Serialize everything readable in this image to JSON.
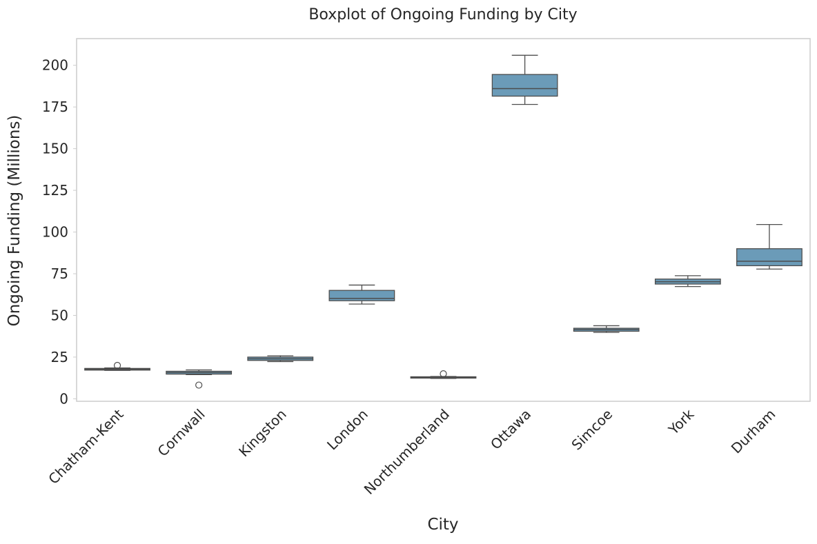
{
  "chart_data": {
    "type": "boxplot",
    "title": "Boxplot of Ongoing Funding by City",
    "xlabel": "City",
    "ylabel": "Ongoing Funding (Millions)",
    "ylim": [
      -1.5,
      216
    ],
    "yticks": [
      0,
      25,
      50,
      75,
      100,
      125,
      150,
      175,
      200
    ],
    "grid": false,
    "box_color": "#6b9bb8",
    "line_color": "#4d4d4d",
    "categories": [
      "Chatham-Kent",
      "Cornwall",
      "Kingston",
      "London",
      "Northumberland",
      "Ottawa",
      "Simcoe",
      "York",
      "Durham"
    ],
    "boxes": [
      {
        "city": "Chatham-Kent",
        "whisker_low": 17,
        "q1": 17.2,
        "median": 17.7,
        "q3": 18.2,
        "whisker_high": 18.5,
        "fliers": [
          20
        ]
      },
      {
        "city": "Cornwall",
        "whisker_low": 14.5,
        "q1": 14.8,
        "median": 15.7,
        "q3": 16.5,
        "whisker_high": 17.3,
        "fliers": [
          8.2
        ]
      },
      {
        "city": "Kingston",
        "whisker_low": 22.3,
        "q1": 23,
        "median": 24,
        "q3": 25,
        "whisker_high": 25.8,
        "fliers": []
      },
      {
        "city": "London",
        "whisker_low": 56.8,
        "q1": 58.8,
        "median": 60.2,
        "q3": 65,
        "whisker_high": 68.2,
        "fliers": []
      },
      {
        "city": "Northumberland",
        "whisker_low": 12.2,
        "q1": 12.4,
        "median": 12.8,
        "q3": 13.2,
        "whisker_high": 13.4,
        "fliers": [
          15
        ]
      },
      {
        "city": "Ottawa",
        "whisker_low": 176.5,
        "q1": 181.5,
        "median": 186,
        "q3": 194.5,
        "whisker_high": 206,
        "fliers": []
      },
      {
        "city": "Simcoe",
        "whisker_low": 39.8,
        "q1": 40.5,
        "median": 41.5,
        "q3": 42.3,
        "whisker_high": 43.8,
        "fliers": []
      },
      {
        "city": "York",
        "whisker_low": 67.3,
        "q1": 68.8,
        "median": 70.2,
        "q3": 71.8,
        "whisker_high": 73.8,
        "fliers": []
      },
      {
        "city": "Durham",
        "whisker_low": 77.8,
        "q1": 79.8,
        "median": 82.5,
        "q3": 90,
        "whisker_high": 104.5,
        "fliers": []
      }
    ]
  }
}
